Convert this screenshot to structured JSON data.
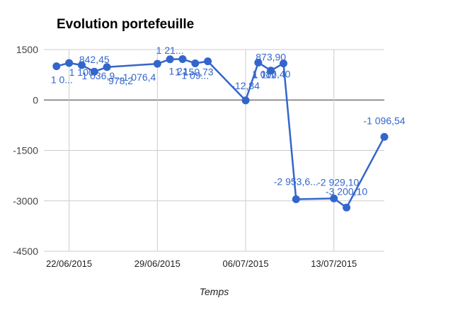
{
  "chart_data": {
    "type": "line",
    "title": "Evolution portefeuille",
    "xlabel": "Temps",
    "ylabel": "",
    "x_ticks": [
      "22/06/2015",
      "29/06/2015",
      "06/07/2015",
      "13/07/2015"
    ],
    "y_ticks": [
      1500,
      0,
      -1500,
      -3000,
      -4500
    ],
    "ylim": [
      -4500,
      1500
    ],
    "xlim": [
      "2015-06-20",
      "2015-07-17"
    ],
    "grid": true,
    "legend": "none",
    "series_color": "#3366cc",
    "points": [
      {
        "x": "2015-06-21",
        "y": 1003,
        "label": "1 0..."
      },
      {
        "x": "2015-06-22",
        "y": 1100,
        "label": "1 100"
      },
      {
        "x": "2015-06-23",
        "y": 1036,
        "label": "1 036,9..."
      },
      {
        "x": "2015-06-24",
        "y": 842.45,
        "label": "842,45"
      },
      {
        "x": "2015-06-25",
        "y": 978.2,
        "label": "978,2"
      },
      {
        "x": "2015-06-29",
        "y": 1076.4,
        "label": "1 076,4"
      },
      {
        "x": "2015-06-30",
        "y": 1210,
        "label": "1 21..."
      },
      {
        "x": "2015-07-01",
        "y": 1217,
        "label": "1 21..."
      },
      {
        "x": "2015-07-02",
        "y": 1090,
        "label": "1 09..."
      },
      {
        "x": "2015-07-03",
        "y": 1150.73,
        "label": "1 150,73"
      },
      {
        "x": "2015-07-06",
        "y": -12.84,
        "label": "-12,84"
      },
      {
        "x": "2015-07-07",
        "y": 1112,
        "label": "1 112"
      },
      {
        "x": "2015-07-08",
        "y": 873.9,
        "label": "873,90"
      },
      {
        "x": "2015-07-09",
        "y": 1086.4,
        "label": "1 086,40"
      },
      {
        "x": "2015-07-10",
        "y": -2953.6,
        "label": "-2 953,6..."
      },
      {
        "x": "2015-07-13",
        "y": -2929.1,
        "label": "-2 929,10"
      },
      {
        "x": "2015-07-14",
        "y": -3200.1,
        "label": "-3 200,10"
      },
      {
        "x": "2015-07-17",
        "y": -1096.54,
        "label": "-1 096,54"
      }
    ]
  }
}
